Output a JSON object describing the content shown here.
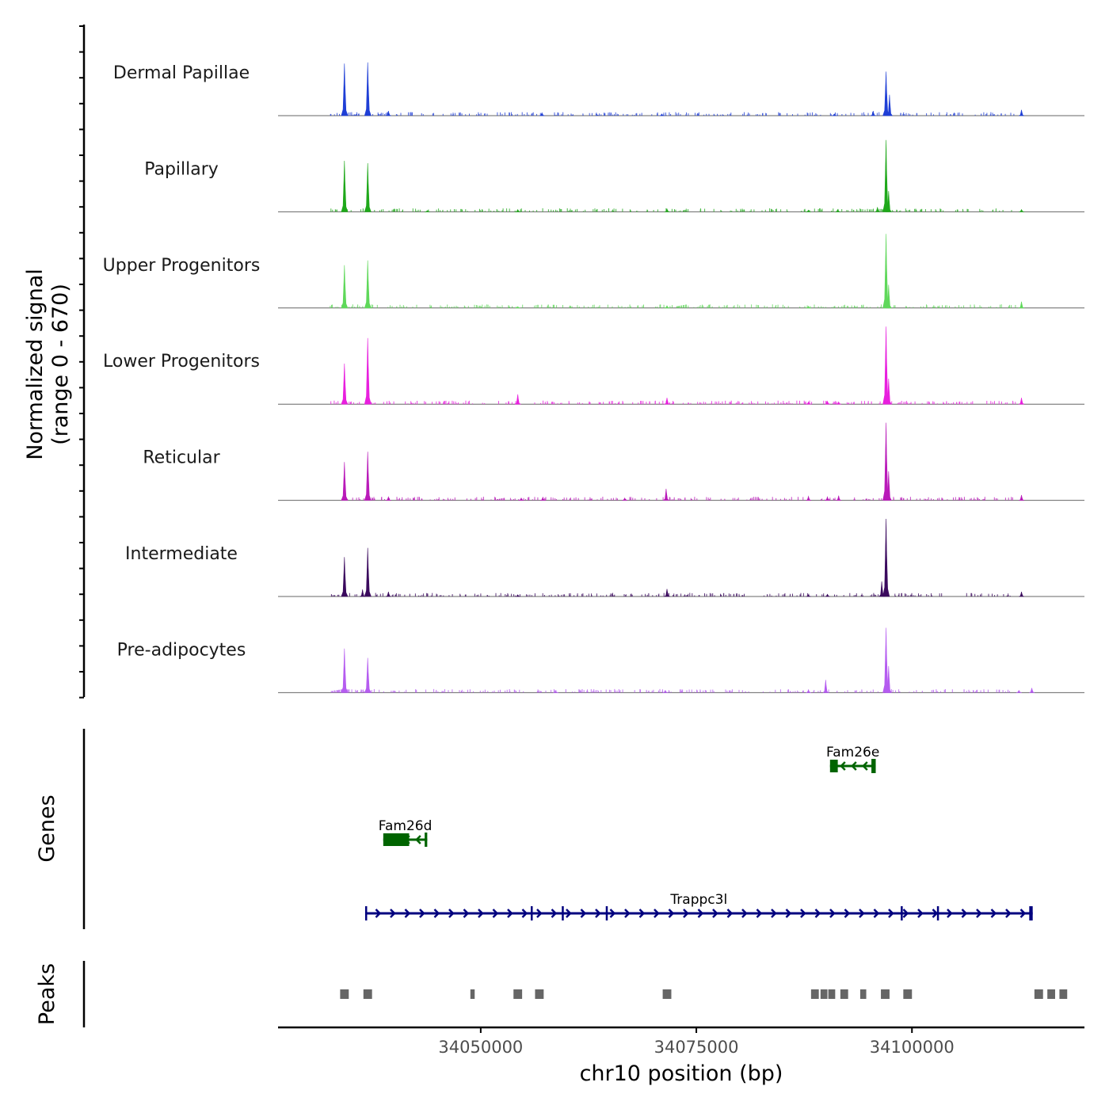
{
  "chart_data": {
    "type": "area",
    "title": "",
    "xlabel": "chr10 position (bp)",
    "ylabel_line1": "Normalized signal",
    "ylabel_line2": "(range 0 - 670)",
    "y_range": [
      0,
      670
    ],
    "x_range": [
      34026500,
      34120000
    ],
    "x_ticks": [
      {
        "value": 34050000,
        "label": "34050000"
      },
      {
        "value": 34075000,
        "label": "34075000"
      },
      {
        "value": 34100000,
        "label": "34100000"
      }
    ],
    "baseline_color": "#666666",
    "series": [
      {
        "name": "Dermal Papillae",
        "color": "#1f3fd6",
        "peaks": [
          [
            34034200,
            450
          ],
          [
            34036900,
            460
          ],
          [
            34039300,
            40
          ],
          [
            34057100,
            25
          ],
          [
            34071000,
            15
          ],
          [
            34091000,
            15
          ],
          [
            34095500,
            40
          ],
          [
            34097000,
            380
          ],
          [
            34097400,
            180
          ],
          [
            34112700,
            50
          ]
        ]
      },
      {
        "name": "Papillary",
        "color": "#1fa81a",
        "peaks": [
          [
            34034200,
            440
          ],
          [
            34036900,
            420
          ],
          [
            34043800,
            10
          ],
          [
            34054300,
            20
          ],
          [
            34071600,
            25
          ],
          [
            34088000,
            15
          ],
          [
            34091400,
            20
          ],
          [
            34096000,
            40
          ],
          [
            34097000,
            620
          ],
          [
            34097300,
            180
          ],
          [
            34112700,
            20
          ]
        ]
      },
      {
        "name": "Upper Progenitors",
        "color": "#5fd85a",
        "peaks": [
          [
            34034200,
            370
          ],
          [
            34036900,
            410
          ],
          [
            34054300,
            12
          ],
          [
            34071600,
            20
          ],
          [
            34088000,
            15
          ],
          [
            34097000,
            640
          ],
          [
            34097300,
            200
          ],
          [
            34112700,
            55
          ]
        ]
      },
      {
        "name": "Lower Progenitors",
        "color": "#e81fde",
        "peaks": [
          [
            34034200,
            350
          ],
          [
            34036900,
            570
          ],
          [
            34054300,
            85
          ],
          [
            34071600,
            55
          ],
          [
            34088000,
            20
          ],
          [
            34090200,
            25
          ],
          [
            34091500,
            20
          ],
          [
            34097000,
            670
          ],
          [
            34097300,
            220
          ],
          [
            34112700,
            55
          ]
        ]
      },
      {
        "name": "Reticular",
        "color": "#b91ab9",
        "peaks": [
          [
            34034200,
            330
          ],
          [
            34036900,
            420
          ],
          [
            34039300,
            30
          ],
          [
            34054700,
            20
          ],
          [
            34057200,
            25
          ],
          [
            34066700,
            20
          ],
          [
            34071500,
            100
          ],
          [
            34088000,
            35
          ],
          [
            34090200,
            30
          ],
          [
            34091500,
            40
          ],
          [
            34097000,
            670
          ],
          [
            34097300,
            250
          ],
          [
            34112700,
            45
          ]
        ]
      },
      {
        "name": "Intermediate",
        "color": "#3b0a5e",
        "peaks": [
          [
            34034200,
            340
          ],
          [
            34036900,
            420
          ],
          [
            34036300,
            60
          ],
          [
            34039300,
            40
          ],
          [
            34054300,
            15
          ],
          [
            34071600,
            65
          ],
          [
            34088000,
            15
          ],
          [
            34090200,
            20
          ],
          [
            34097000,
            670
          ],
          [
            34096500,
            130
          ],
          [
            34112700,
            40
          ]
        ]
      },
      {
        "name": "Pre-adipocytes",
        "color": "#b55cf0",
        "peaks": [
          [
            34034200,
            380
          ],
          [
            34036900,
            300
          ],
          [
            34058700,
            12
          ],
          [
            34071400,
            20
          ],
          [
            34088000,
            25
          ],
          [
            34090000,
            110
          ],
          [
            34097000,
            560
          ],
          [
            34097300,
            230
          ],
          [
            34112400,
            20
          ],
          [
            34113900,
            40
          ]
        ]
      }
    ],
    "genes": [
      {
        "name": "Fam26e",
        "color": "#006400",
        "strand": "-",
        "row": 1,
        "start": 34090500,
        "end": 34095800,
        "exons": [
          [
            34090500,
            34091400
          ],
          [
            34095300,
            34095800
          ]
        ]
      },
      {
        "name": "Fam26d",
        "color": "#006400",
        "strand": "-",
        "row": 2,
        "start": 34038700,
        "end": 34043800,
        "exons": [
          [
            34038700,
            34041700
          ],
          [
            34043500,
            34043800
          ]
        ]
      },
      {
        "name": "Trappc3l",
        "color": "#00007f",
        "strand": "+",
        "row": 3,
        "start": 34036600,
        "end": 34114000,
        "exons": [
          [
            34036600,
            34036800
          ],
          [
            34055800,
            34056000
          ],
          [
            34059400,
            34059600
          ],
          [
            34064500,
            34064700
          ],
          [
            34098700,
            34098900
          ],
          [
            34102900,
            34103100
          ],
          [
            34113600,
            34114000
          ]
        ]
      }
    ],
    "peaks_track": {
      "name": "Peaks",
      "color": "#666666",
      "regions": [
        [
          34033700,
          34034700
        ],
        [
          34036400,
          34037400
        ],
        [
          34048800,
          34049300
        ],
        [
          34053800,
          34054800
        ],
        [
          34056300,
          34057300
        ],
        [
          34071100,
          34072100
        ],
        [
          34088300,
          34089200
        ],
        [
          34089400,
          34090200
        ],
        [
          34090300,
          34091100
        ],
        [
          34091700,
          34092600
        ],
        [
          34094000,
          34094700
        ],
        [
          34096400,
          34097400
        ],
        [
          34099000,
          34100000
        ],
        [
          34114200,
          34115200
        ],
        [
          34115700,
          34116600
        ],
        [
          34117100,
          34118000
        ]
      ]
    },
    "panel_labels": {
      "genes": "Genes",
      "peaks": "Peaks"
    }
  }
}
